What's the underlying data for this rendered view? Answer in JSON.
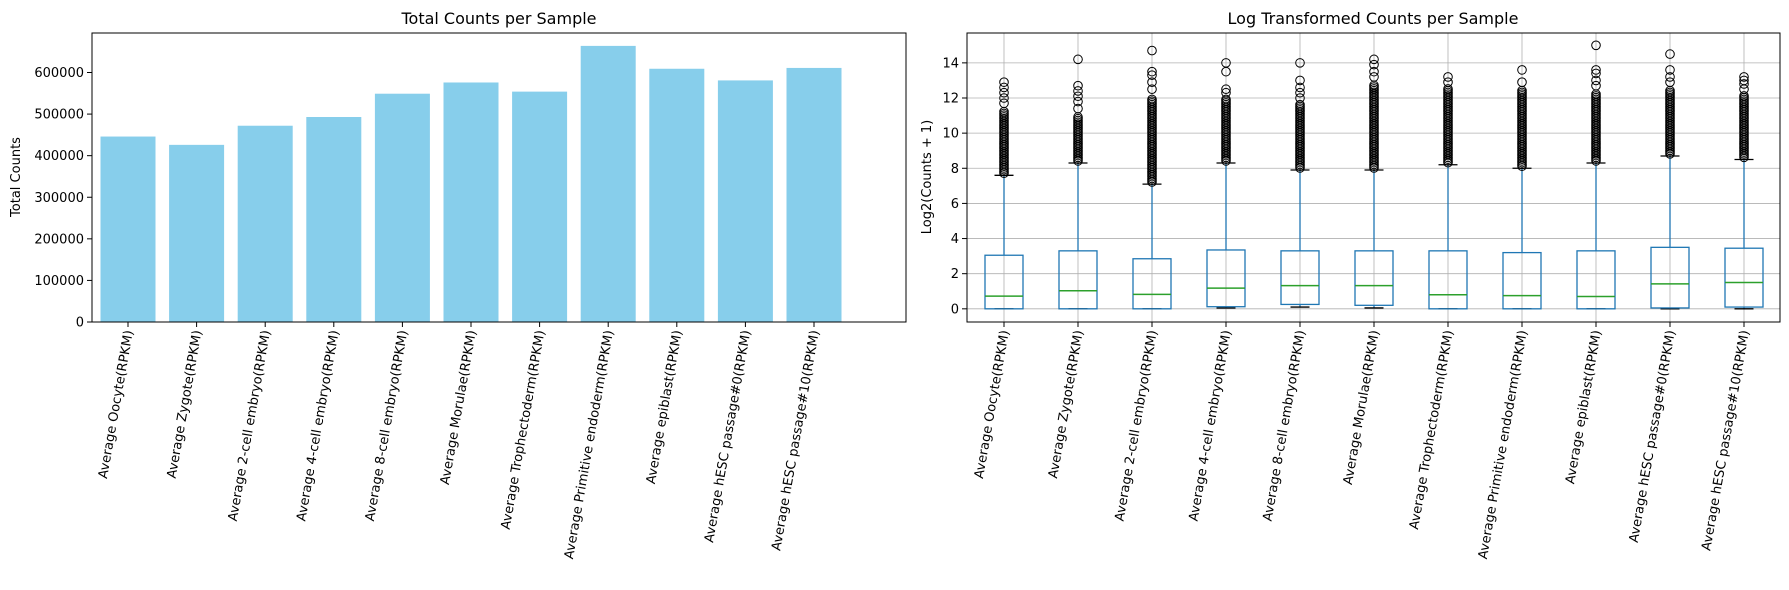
{
  "chart_data": [
    {
      "type": "bar",
      "title": "Total Counts per Sample",
      "xlabel": "",
      "ylabel": "Total Counts",
      "ylim": [
        0,
        695000
      ],
      "yticks": [
        0,
        100000,
        200000,
        300000,
        400000,
        500000,
        600000
      ],
      "grid": false,
      "bar_color": "#87ceeb",
      "categories": [
        "Average Oocyte(RPKM)",
        "Average Zygote(RPKM)",
        "Average 2-cell embryo(RPKM)",
        "Average 4-cell embryo(RPKM)",
        "Average 8-cell embryo(RPKM)",
        "Average Morulae(RPKM)",
        "Average Trophectoderm(RPKM)",
        "Average Primitive endoderm(RPKM)",
        "Average epiblast(RPKM)",
        "Average hESC passage#0(RPKM)",
        "Average hESC passage#10(RPKM)"
      ],
      "values": [
        446000,
        426000,
        472000,
        493000,
        549000,
        576000,
        554000,
        664000,
        609000,
        581000,
        611000
      ]
    },
    {
      "type": "box",
      "title": "Log Transformed Counts per Sample",
      "xlabel": "",
      "ylabel": "Log2(Counts + 1)",
      "ylim": [
        -0.75,
        15.7
      ],
      "yticks": [
        0,
        2,
        4,
        6,
        8,
        10,
        12,
        14
      ],
      "grid": true,
      "box_color": "#1f77b4",
      "median_color": "#2ca02c",
      "categories": [
        "Average Oocyte(RPKM)",
        "Average Zygote(RPKM)",
        "Average 2-cell embryo(RPKM)",
        "Average 4-cell embryo(RPKM)",
        "Average 8-cell embryo(RPKM)",
        "Average Morulae(RPKM)",
        "Average Trophectoderm(RPKM)",
        "Average Primitive endoderm(RPKM)",
        "Average epiblast(RPKM)",
        "Average hESC passage#0(RPKM)",
        "Average hESC passage#10(RPKM)"
      ],
      "boxes": [
        {
          "whislo": 0,
          "q1": 0,
          "med": 0.72,
          "q3": 3.05,
          "whishi": 7.6,
          "fliers_dense_to": 11.3,
          "fliers": [
            11.7,
            12.0,
            12.3,
            12.6,
            12.9
          ]
        },
        {
          "whislo": 0,
          "q1": 0,
          "med": 1.03,
          "q3": 3.3,
          "whishi": 8.3,
          "fliers_dense_to": 11.0,
          "fliers": [
            11.4,
            11.8,
            12.1,
            12.4,
            12.7,
            14.2
          ]
        },
        {
          "whislo": 0,
          "q1": 0,
          "med": 0.82,
          "q3": 2.85,
          "whishi": 7.1,
          "fliers_dense_to": 12.0,
          "fliers": [
            12.5,
            12.9,
            13.3,
            13.5,
            14.7
          ]
        },
        {
          "whislo": 0.05,
          "q1": 0.12,
          "med": 1.18,
          "q3": 3.35,
          "whishi": 8.3,
          "fliers_dense_to": 12.0,
          "fliers": [
            12.3,
            12.5,
            13.5,
            14.0
          ]
        },
        {
          "whislo": 0.1,
          "q1": 0.25,
          "med": 1.32,
          "q3": 3.3,
          "whishi": 7.9,
          "fliers_dense_to": 11.7,
          "fliers": [
            12.0,
            12.3,
            12.6,
            13.0,
            14.0
          ]
        },
        {
          "whislo": 0.05,
          "q1": 0.2,
          "med": 1.32,
          "q3": 3.3,
          "whishi": 7.9,
          "fliers_dense_to": 12.8,
          "fliers": [
            13.2,
            13.5,
            13.9,
            14.2
          ]
        },
        {
          "whislo": 0,
          "q1": 0,
          "med": 0.8,
          "q3": 3.3,
          "whishi": 8.2,
          "fliers_dense_to": 12.6,
          "fliers": [
            12.9,
            13.2
          ]
        },
        {
          "whislo": 0,
          "q1": 0,
          "med": 0.75,
          "q3": 3.2,
          "whishi": 8.0,
          "fliers_dense_to": 12.5,
          "fliers": [
            12.9,
            13.6
          ]
        },
        {
          "whislo": 0,
          "q1": 0,
          "med": 0.7,
          "q3": 3.3,
          "whishi": 8.3,
          "fliers_dense_to": 12.3,
          "fliers": [
            12.7,
            13.0,
            13.4,
            13.6,
            15.0
          ]
        },
        {
          "whislo": 0,
          "q1": 0.05,
          "med": 1.42,
          "q3": 3.5,
          "whishi": 8.7,
          "fliers_dense_to": 12.5,
          "fliers": [
            12.9,
            13.2,
            13.6,
            14.5
          ]
        },
        {
          "whislo": 0,
          "q1": 0.1,
          "med": 1.5,
          "q3": 3.45,
          "whishi": 8.5,
          "fliers_dense_to": 12.2,
          "fliers": [
            12.5,
            12.8,
            13.0,
            13.2
          ]
        }
      ]
    }
  ]
}
